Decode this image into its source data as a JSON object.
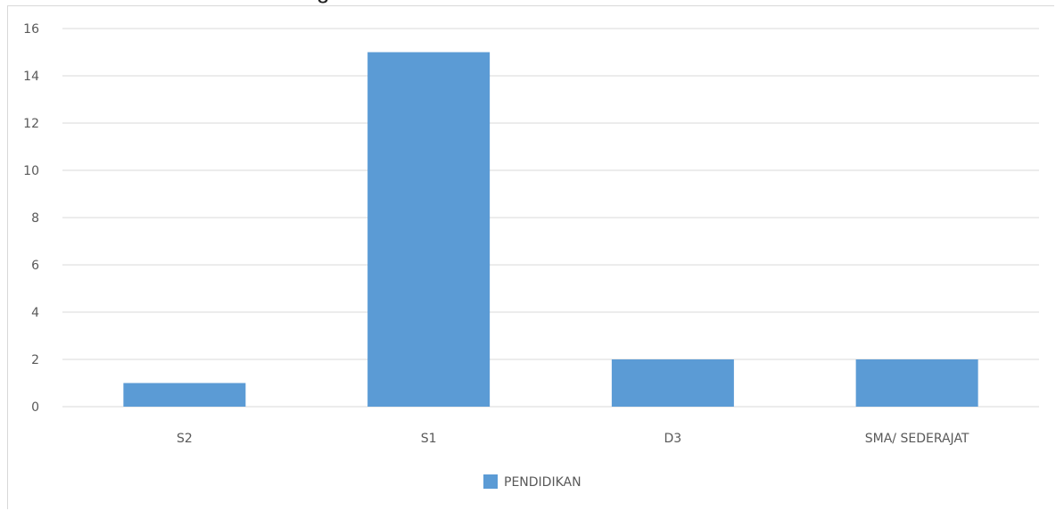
{
  "title_fragment": "g",
  "chart_data": {
    "type": "bar",
    "categories": [
      "S2",
      "S1",
      "D3",
      "SMA/ SEDERAJAT"
    ],
    "series": [
      {
        "name": "PENDIDIKAN",
        "values": [
          1,
          15,
          2,
          2
        ],
        "color": "#5b9bd5"
      }
    ],
    "ylim": [
      0,
      16
    ],
    "yticks": [
      0,
      2,
      4,
      6,
      8,
      10,
      12,
      14,
      16
    ],
    "grid": true,
    "legend_position": "bottom",
    "gridline_color": "#d9d9d9",
    "tick_color": "#595959"
  }
}
